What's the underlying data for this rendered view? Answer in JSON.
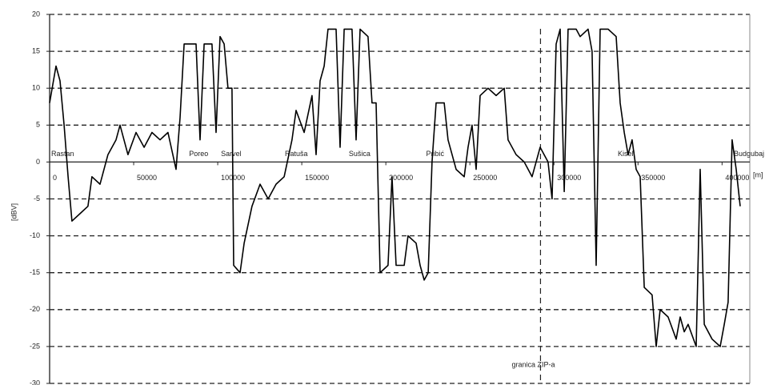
{
  "chart_data": {
    "type": "line",
    "ylabel": "[dBV]",
    "xlabel": "[m]",
    "ylim": [
      -30,
      20
    ],
    "yticks": [
      -30,
      -25,
      -20,
      -15,
      -10,
      -5,
      0,
      5,
      10,
      15,
      20
    ],
    "xlim": [
      0,
      416500
    ],
    "xticks": [
      0,
      50000,
      100000,
      150000,
      200000,
      250000,
      300000,
      350000,
      400000
    ],
    "grid": true,
    "color": "#000000",
    "series": [
      {
        "color": "#000000",
        "x": [
          0,
          3800,
          6200,
          8600,
          11000,
          13300,
          18100,
          22800,
          25200,
          30000,
          34700,
          39500,
          41900,
          46600,
          51400,
          56200,
          60900,
          65700,
          70400,
          75200,
          77600,
          80000,
          87100,
          89500,
          91900,
          96600,
          99000,
          101400,
          103800,
          106100,
          108500,
          109500,
          113300,
          115700,
          120400,
          125200,
          130000,
          134700,
          139500,
          144200,
          146600,
          151400,
          156100,
          158500,
          160900,
          163300,
          165600,
          170400,
          172800,
          175200,
          179900,
          182300,
          184700,
          189400,
          191800,
          194200,
          196600,
          201300,
          203700,
          206100,
          210900,
          213200,
          218000,
          220400,
          222800,
          225200,
          227500,
          229900,
          234700,
          237000,
          241800,
          246600,
          248900,
          251300,
          253700,
          256100,
          260800,
          265600,
          270400,
          272700,
          277500,
          282300,
          287000,
          291800,
          296500,
          298900,
          301300,
          303700,
          306100,
          308400,
          313200,
          315600,
          320300,
          322700,
          325100,
          327500,
          332200,
          337000,
          339400,
          341800,
          344100,
          346500,
          348900,
          351300,
          353700,
          358400,
          360800,
          363200,
          367900,
          372700,
          375100,
          377500,
          379800,
          384600,
          387000,
          389400,
          394100,
          398900,
          401300,
          403600,
          406000,
          408400,
          410800
        ],
        "values": [
          8,
          13,
          11,
          5,
          -2,
          -8,
          -7,
          -6,
          -2,
          -3,
          1,
          3,
          5,
          1,
          4,
          2,
          4,
          3,
          4,
          -1,
          6,
          16,
          16,
          3,
          16,
          16,
          4,
          17,
          16,
          10,
          10,
          -14,
          -15,
          -11,
          -6,
          -3,
          -5,
          -3,
          -2,
          3,
          7,
          4,
          9,
          1,
          11,
          13,
          18,
          18,
          2,
          18,
          18,
          3,
          18,
          17,
          8,
          8,
          -15,
          -14,
          -2,
          -14,
          -14,
          -10,
          -11,
          -14,
          -16,
          -15,
          0,
          8,
          8,
          3,
          -1,
          -2,
          2,
          5,
          -1,
          9,
          10,
          9,
          10,
          3,
          1,
          0,
          -2,
          2,
          0,
          -5,
          16,
          18,
          -4,
          18,
          18,
          17,
          18,
          15,
          -14,
          18,
          18,
          17,
          8,
          4,
          1,
          3,
          -1,
          -2,
          -17,
          -18,
          -25,
          -20,
          -21,
          -24,
          -21,
          -23,
          -22,
          -25,
          -1,
          -22,
          -24,
          -25,
          -22,
          -19,
          3,
          -1,
          -6
        ]
      }
    ],
    "stations": [
      {
        "text": "Rastan",
        "x": 0
      },
      {
        "text": "Poreo",
        "x": 82000
      },
      {
        "text": "Sarvel",
        "x": 101000
      },
      {
        "text": "Ratuša",
        "x": 139000
      },
      {
        "text": "Sušica",
        "x": 177000
      },
      {
        "text": "Pribić",
        "x": 223000
      },
      {
        "text": "Kiseli",
        "x": 337000
      },
      {
        "text": "Budgubaj",
        "x": 406000
      }
    ],
    "boundary": {
      "x": 292000,
      "label": "granica ZIP-a",
      "y": -27.5
    }
  }
}
